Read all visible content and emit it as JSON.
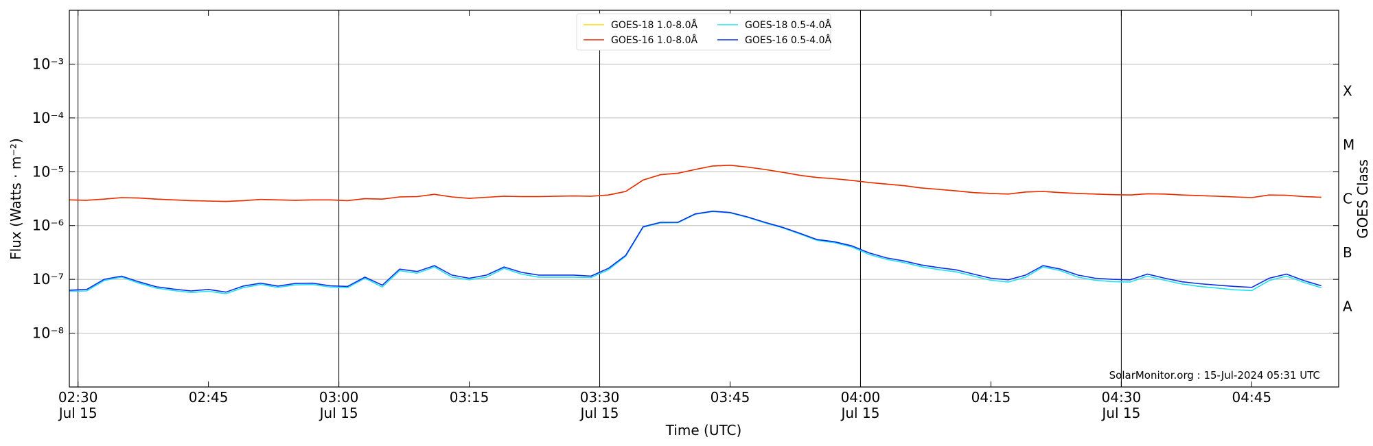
{
  "chart_data": {
    "type": "line",
    "ylabel": "Flux (Watts · m⁻²)",
    "xlabel": "Time (UTC)",
    "y2label": "GOES Class",
    "annotation": "SolarMonitor.org : 15-Jul-2024 05:31 UTC",
    "yscale": "log",
    "grid": "y",
    "legend": "upper center",
    "ylim": [
      1e-09,
      0.01
    ],
    "yticks": [
      {
        "value": 0.001,
        "label": "10⁻³"
      },
      {
        "value": 0.0001,
        "label": "10⁻⁴"
      },
      {
        "value": 1e-05,
        "label": "10⁻⁵"
      },
      {
        "value": 1e-06,
        "label": "10⁻⁶"
      },
      {
        "value": 1e-07,
        "label": "10⁻⁷"
      },
      {
        "value": 1e-08,
        "label": "10⁻⁸"
      }
    ],
    "y2ticks": [
      {
        "value": 3.16e-08,
        "label": "A"
      },
      {
        "value": 3.16e-07,
        "label": "B"
      },
      {
        "value": 3.16e-06,
        "label": "C"
      },
      {
        "value": 3.16e-05,
        "label": "M"
      },
      {
        "value": 0.000316,
        "label": "X"
      }
    ],
    "xlim": [
      "02:29",
      "04:55"
    ],
    "xticks": [
      {
        "value": "02:30",
        "label": "02:30\nJul 15"
      },
      {
        "value": "02:45",
        "label": "02:45"
      },
      {
        "value": "03:00",
        "label": "03:00\nJul 15"
      },
      {
        "value": "03:15",
        "label": "03:15"
      },
      {
        "value": "03:30",
        "label": "03:30\nJul 15"
      },
      {
        "value": "03:45",
        "label": "03:45"
      },
      {
        "value": "04:00",
        "label": "04:00\nJul 15"
      },
      {
        "value": "04:15",
        "label": "04:15"
      },
      {
        "value": "04:30",
        "label": "04:30\nJul 15"
      },
      {
        "value": "04:45",
        "label": "04:45"
      }
    ],
    "x": [
      "02:29",
      "02:31",
      "02:33",
      "02:35",
      "02:37",
      "02:39",
      "02:41",
      "02:43",
      "02:45",
      "02:47",
      "02:49",
      "02:51",
      "02:53",
      "02:55",
      "02:57",
      "02:59",
      "03:01",
      "03:03",
      "03:05",
      "03:07",
      "03:09",
      "03:11",
      "03:13",
      "03:15",
      "03:17",
      "03:19",
      "03:21",
      "03:23",
      "03:25",
      "03:27",
      "03:29",
      "03:31",
      "03:33",
      "03:35",
      "03:37",
      "03:39",
      "03:41",
      "03:43",
      "03:45",
      "03:47",
      "03:49",
      "03:51",
      "03:53",
      "03:55",
      "03:57",
      "03:59",
      "04:01",
      "04:03",
      "04:05",
      "04:07",
      "04:09",
      "04:11",
      "04:13",
      "04:15",
      "04:17",
      "04:19",
      "04:21",
      "04:23",
      "04:25",
      "04:27",
      "04:29",
      "04:31",
      "04:33",
      "04:35",
      "04:37",
      "04:39",
      "04:41",
      "04:43",
      "04:45",
      "04:47",
      "04:49",
      "04:51",
      "04:53"
    ],
    "series": [
      {
        "name": "GOES-18 1.0-8.0Å",
        "color": "#ffd700",
        "values": [
          3e-06,
          2.95e-06,
          3.1e-06,
          3.3e-06,
          3.25e-06,
          3.1e-06,
          3e-06,
          2.9e-06,
          2.85e-06,
          2.8e-06,
          2.9e-06,
          3.05e-06,
          3e-06,
          2.95e-06,
          3e-06,
          3e-06,
          2.9e-06,
          3.15e-06,
          3.1e-06,
          3.4e-06,
          3.45e-06,
          3.8e-06,
          3.4e-06,
          3.2e-06,
          3.35e-06,
          3.5e-06,
          3.45e-06,
          3.45e-06,
          3.5e-06,
          3.55e-06,
          3.5e-06,
          3.7e-06,
          4.3e-06,
          7e-06,
          8.8e-06,
          9.4e-06,
          1.1e-05,
          1.28e-05,
          1.32e-05,
          1.22e-05,
          1.1e-05,
          9.8e-06,
          8.6e-06,
          7.8e-06,
          7.4e-06,
          6.9e-06,
          6.3e-06,
          5.9e-06,
          5.5e-06,
          5e-06,
          4.7e-06,
          4.4e-06,
          4.1e-06,
          3.95e-06,
          3.85e-06,
          4.2e-06,
          4.3e-06,
          4.1e-06,
          3.95e-06,
          3.85e-06,
          3.75e-06,
          3.7e-06,
          3.9e-06,
          3.85e-06,
          3.7e-06,
          3.6e-06,
          3.5e-06,
          3.4e-06,
          3.3e-06,
          3.7e-06,
          3.65e-06,
          3.45e-06,
          3.35e-06
        ]
      },
      {
        "name": "GOES-16 1.0-8.0Å",
        "color": "#e8290b",
        "values": [
          3e-06,
          2.95e-06,
          3.1e-06,
          3.3e-06,
          3.25e-06,
          3.1e-06,
          3e-06,
          2.9e-06,
          2.85e-06,
          2.8e-06,
          2.9e-06,
          3.05e-06,
          3e-06,
          2.95e-06,
          3e-06,
          3e-06,
          2.9e-06,
          3.15e-06,
          3.1e-06,
          3.4e-06,
          3.45e-06,
          3.8e-06,
          3.4e-06,
          3.2e-06,
          3.35e-06,
          3.5e-06,
          3.45e-06,
          3.45e-06,
          3.5e-06,
          3.55e-06,
          3.5e-06,
          3.7e-06,
          4.3e-06,
          7e-06,
          8.8e-06,
          9.4e-06,
          1.1e-05,
          1.28e-05,
          1.32e-05,
          1.22e-05,
          1.1e-05,
          9.8e-06,
          8.6e-06,
          7.8e-06,
          7.4e-06,
          6.9e-06,
          6.3e-06,
          5.9e-06,
          5.5e-06,
          5e-06,
          4.7e-06,
          4.4e-06,
          4.1e-06,
          3.95e-06,
          3.85e-06,
          4.2e-06,
          4.3e-06,
          4.1e-06,
          3.95e-06,
          3.85e-06,
          3.75e-06,
          3.7e-06,
          3.9e-06,
          3.85e-06,
          3.7e-06,
          3.6e-06,
          3.5e-06,
          3.4e-06,
          3.3e-06,
          3.7e-06,
          3.65e-06,
          3.45e-06,
          3.35e-06
        ]
      },
      {
        "name": "GOES-18 0.5-4.0Å",
        "color": "#22e0f0",
        "values": [
          6e-08,
          6.1e-08,
          9.5e-08,
          1.1e-07,
          8.5e-08,
          6.9e-08,
          6.2e-08,
          5.7e-08,
          6e-08,
          5.4e-08,
          7e-08,
          8e-08,
          7.1e-08,
          7.9e-08,
          8e-08,
          7.2e-08,
          7e-08,
          1.05e-07,
          7.2e-08,
          1.45e-07,
          1.3e-07,
          1.7e-07,
          1.1e-07,
          9.8e-08,
          1.1e-07,
          1.6e-07,
          1.25e-07,
          1.1e-07,
          1.1e-07,
          1.1e-07,
          1.08e-07,
          1.5e-07,
          2.7e-07,
          9.3e-07,
          1.12e-06,
          1.13e-06,
          1.62e-06,
          1.82e-06,
          1.72e-06,
          1.42e-06,
          1.12e-06,
          9.1e-07,
          7e-07,
          5.3e-07,
          4.8e-07,
          4e-07,
          2.9e-07,
          2.35e-07,
          2.05e-07,
          1.72e-07,
          1.52e-07,
          1.38e-07,
          1.15e-07,
          9.6e-08,
          8.9e-08,
          1.1e-07,
          1.7e-07,
          1.45e-07,
          1.1e-07,
          9.6e-08,
          9.1e-08,
          8.9e-08,
          1.15e-07,
          9.6e-08,
          8.2e-08,
          7.4e-08,
          6.9e-08,
          6.4e-08,
          6.2e-08,
          9.5e-08,
          1.15e-07,
          8.8e-08,
          7e-08
        ]
      },
      {
        "name": "GOES-16 0.5-4.0Å",
        "color": "#0a2ee8",
        "values": [
          6.3e-08,
          6.5e-08,
          1e-07,
          1.15e-07,
          9e-08,
          7.3e-08,
          6.6e-08,
          6.1e-08,
          6.5e-08,
          5.8e-08,
          7.5e-08,
          8.5e-08,
          7.5e-08,
          8.4e-08,
          8.5e-08,
          7.6e-08,
          7.4e-08,
          1.1e-07,
          7.8e-08,
          1.55e-07,
          1.4e-07,
          1.8e-07,
          1.2e-07,
          1.05e-07,
          1.2e-07,
          1.7e-07,
          1.35e-07,
          1.2e-07,
          1.2e-07,
          1.2e-07,
          1.15e-07,
          1.6e-07,
          2.8e-07,
          9.5e-07,
          1.15e-06,
          1.15e-06,
          1.65e-06,
          1.85e-06,
          1.75e-06,
          1.45e-06,
          1.15e-06,
          9.3e-07,
          7.2e-07,
          5.5e-07,
          5e-07,
          4.2e-07,
          3.1e-07,
          2.5e-07,
          2.2e-07,
          1.85e-07,
          1.65e-07,
          1.5e-07,
          1.25e-07,
          1.05e-07,
          9.8e-08,
          1.2e-07,
          1.8e-07,
          1.55e-07,
          1.2e-07,
          1.05e-07,
          1e-07,
          9.8e-08,
          1.25e-07,
          1.05e-07,
          9e-08,
          8.3e-08,
          7.8e-08,
          7.4e-08,
          7.1e-08,
          1.05e-07,
          1.25e-07,
          9.5e-08,
          7.6e-08
        ]
      }
    ]
  }
}
